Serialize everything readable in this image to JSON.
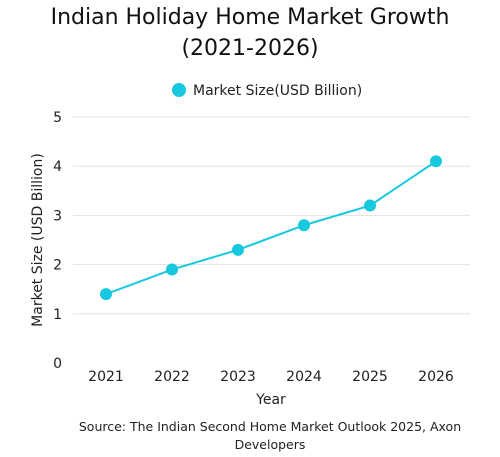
{
  "chart_data": {
    "type": "line",
    "title_line1": "Indian Holiday Home Market Growth",
    "title_line2": "(2021-2026)",
    "categories": [
      "2021",
      "2022",
      "2023",
      "2024",
      "2025",
      "2026"
    ],
    "series": [
      {
        "name": "Market Size(USD Billion)",
        "values": [
          1.4,
          1.9,
          2.3,
          2.8,
          3.2,
          4.1
        ],
        "color": "#17C8DF"
      }
    ],
    "xlabel": "Year",
    "ylabel": "Market Size (USD Billion)",
    "ylim": [
      0,
      5
    ],
    "yticks": [
      "0",
      "1",
      "2",
      "3",
      "4",
      "5"
    ],
    "grid": true,
    "legend_position": "top",
    "source": "Source: The Indian Second Home Market Outlook 2025, Axon Developers"
  }
}
